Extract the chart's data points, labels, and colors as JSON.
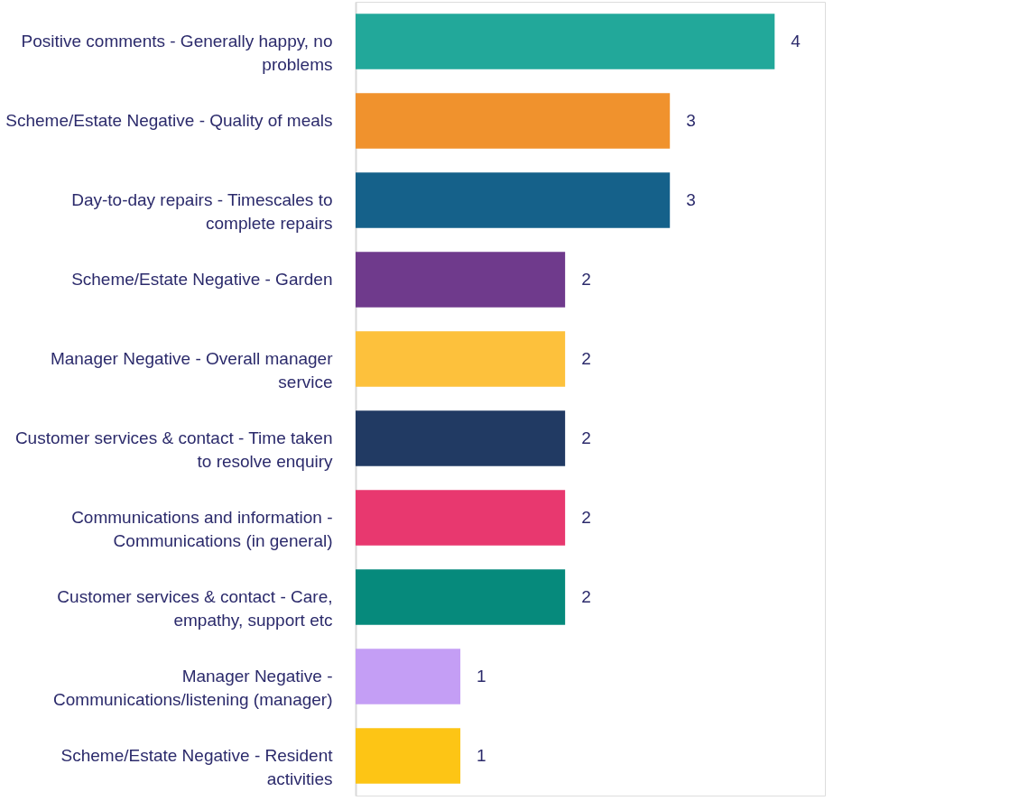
{
  "chart_data": {
    "type": "bar",
    "orientation": "horizontal",
    "data_labels": true,
    "tick_labels": "y",
    "categories": [
      "Positive comments - Generally happy, no problems",
      "Scheme/Estate Negative - Quality of meals",
      "Day-to-day repairs - Timescales to complete repairs",
      "Scheme/Estate Negative - Garden",
      "Manager Negative - Overall manager service",
      "Customer services & contact - Time taken to resolve enquiry",
      "Communications and information - Communications (in general)",
      "Customer services & contact - Care, empathy, support etc",
      "Manager Negative - Communications/listening (manager)",
      "Scheme/Estate Negative - Resident activities"
    ],
    "values": [
      4,
      3,
      3,
      2,
      2,
      2,
      2,
      2,
      1,
      1
    ],
    "colors": [
      "#22a89a",
      "#f0922d",
      "#15618a",
      "#6f3a8c",
      "#fdc13c",
      "#213a63",
      "#e8386f",
      "#068a7c",
      "#c49ef5",
      "#fdc515"
    ]
  }
}
